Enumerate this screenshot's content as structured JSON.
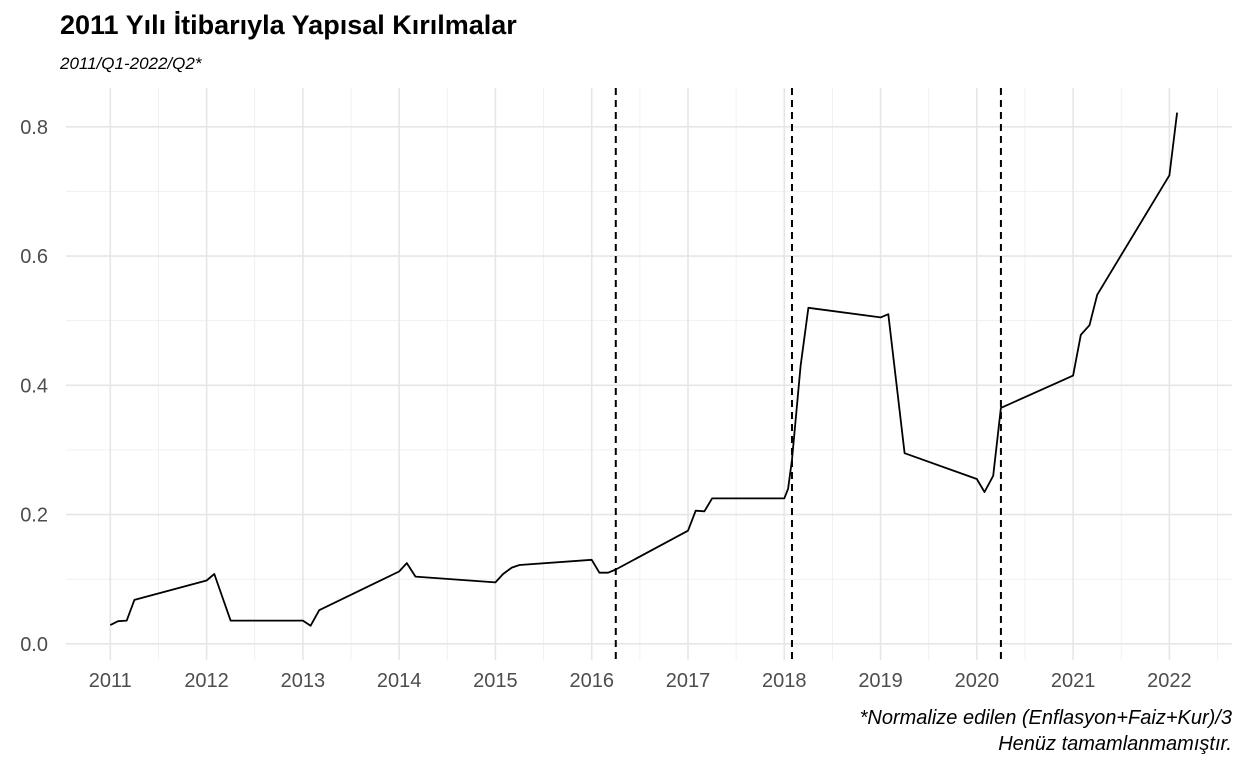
{
  "chart_data": {
    "type": "line",
    "title": "2011 Yılı İtibarıyla Yapısal Kırılmalar",
    "subtitle": "2011/Q1-2022/Q2*",
    "caption_lines": [
      "*Normalize edilen (Enflasyon+Faiz+Kur)/3",
      "Henüz tamamlanmamıştır."
    ],
    "xlabel": "",
    "ylabel": "",
    "xlim": [
      2010.54,
      2022.65
    ],
    "ylim": [
      -0.025,
      0.86
    ],
    "x_ticks": [
      2011,
      2012,
      2013,
      2014,
      2015,
      2016,
      2017,
      2018,
      2019,
      2020,
      2021,
      2022
    ],
    "x_tick_labels": [
      "2011",
      "2012",
      "2013",
      "2014",
      "2015",
      "2016",
      "2017",
      "2018",
      "2019",
      "2020",
      "2021",
      "2022"
    ],
    "y_ticks": [
      0.0,
      0.2,
      0.4,
      0.6,
      0.8
    ],
    "y_tick_labels": [
      "0.0",
      "0.2",
      "0.4",
      "0.6",
      "0.8"
    ],
    "grid": true,
    "line_color": "#000000",
    "series": [
      {
        "x": [
          2011.0,
          2011.08,
          2011.17,
          2011.25,
          2012.0,
          2012.08,
          2012.25,
          2013.0,
          2013.08,
          2013.17,
          2014.0,
          2014.08,
          2014.17,
          2015.0,
          2015.08,
          2015.17,
          2015.25,
          2016.0,
          2016.08,
          2016.17,
          2016.25,
          2017.0,
          2017.08,
          2017.17,
          2017.25,
          2018.0,
          2018.04,
          2018.08,
          2018.17,
          2018.25,
          2019.0,
          2019.08,
          2019.25,
          2020.0,
          2020.08,
          2020.17,
          2020.25,
          2021.0,
          2021.08,
          2021.17,
          2021.25,
          2022.0,
          2022.08
        ],
        "y": [
          0.029,
          0.035,
          0.036,
          0.068,
          0.098,
          0.108,
          0.036,
          0.036,
          0.028,
          0.052,
          0.112,
          0.125,
          0.104,
          0.095,
          0.108,
          0.118,
          0.122,
          0.13,
          0.11,
          0.11,
          0.115,
          0.175,
          0.206,
          0.205,
          0.225,
          0.225,
          0.24,
          0.285,
          0.43,
          0.52,
          0.505,
          0.51,
          0.295,
          0.255,
          0.235,
          0.26,
          0.365,
          0.415,
          0.478,
          0.493,
          0.54,
          0.725,
          0.822
        ]
      }
    ],
    "breaks": [
      2016.25,
      2018.08,
      2020.25
    ]
  }
}
